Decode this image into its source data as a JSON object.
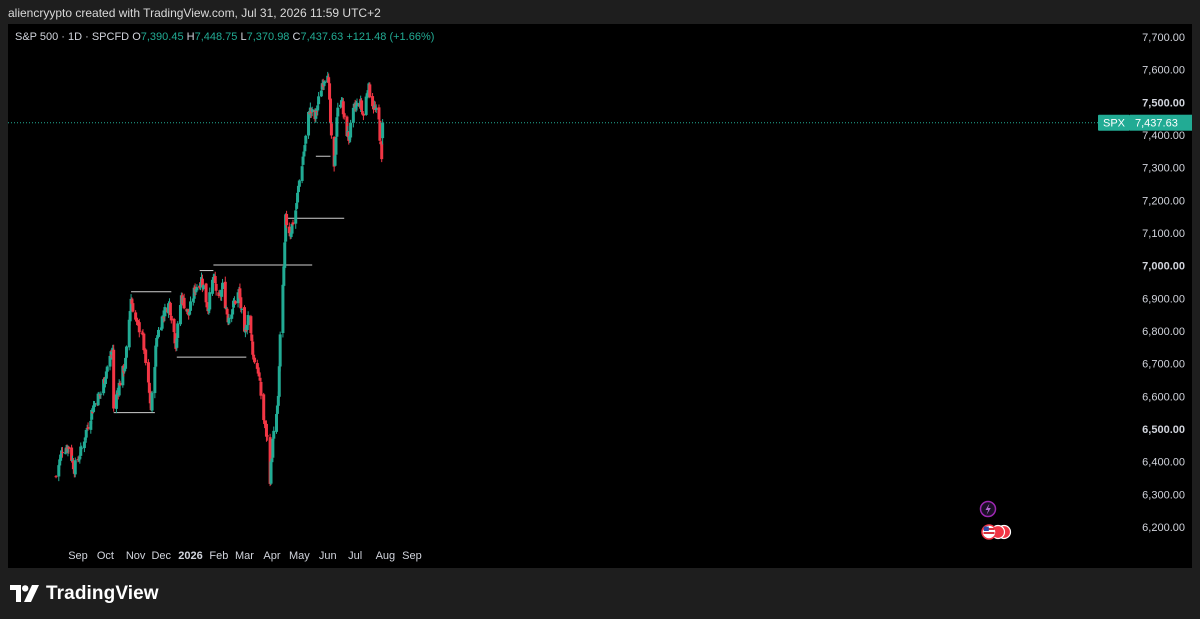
{
  "caption": "aliencryypto created with TradingView.com, Jul 31, 2026 11:59 UTC+2",
  "legend": {
    "symbol": "S&P 500 · 1D · SPCFD",
    "open_label": "O",
    "open": "7,390.45",
    "high_label": "H",
    "high": "7,448.75",
    "low_label": "L",
    "low": "7,370.98",
    "close_label": "C",
    "close": "7,437.63",
    "change": "+121.48 (+1.66%)"
  },
  "price_tag": {
    "symbol": "SPX",
    "value": "7,437.63"
  },
  "brand": {
    "name": "TradingView"
  },
  "colors": {
    "up": "#22ab94",
    "down": "#f23645",
    "background": "#000000",
    "frame": "#1e1e1e",
    "tag": "#22ab94",
    "level_lines": "#cfcfcf"
  },
  "chart_data": {
    "type": "candlestick",
    "symbol": "S&P 500",
    "interval": "1D",
    "ylim": [
      6130,
      7750
    ],
    "y_ticks": [
      {
        "value": 6200,
        "label": "6,200.00",
        "bold": false
      },
      {
        "value": 6300,
        "label": "6,300.00",
        "bold": false
      },
      {
        "value": 6400,
        "label": "6,400.00",
        "bold": false
      },
      {
        "value": 6500,
        "label": "6,500.00",
        "bold": true
      },
      {
        "value": 6600,
        "label": "6,600.00",
        "bold": false
      },
      {
        "value": 6700,
        "label": "6,700.00",
        "bold": false
      },
      {
        "value": 6800,
        "label": "6,800.00",
        "bold": false
      },
      {
        "value": 6900,
        "label": "6,900.00",
        "bold": false
      },
      {
        "value": 7000,
        "label": "7,000.00",
        "bold": true
      },
      {
        "value": 7100,
        "label": "7,100.00",
        "bold": false
      },
      {
        "value": 7200,
        "label": "7,200.00",
        "bold": false
      },
      {
        "value": 7300,
        "label": "7,300.00",
        "bold": false
      },
      {
        "value": 7400,
        "label": "7,400.00",
        "bold": false
      },
      {
        "value": 7500,
        "label": "7,500.00",
        "bold": true
      },
      {
        "value": 7600,
        "label": "7,600.00",
        "bold": false
      },
      {
        "value": 7700,
        "label": "7,700.00",
        "bold": false
      }
    ],
    "x_ticks": [
      {
        "date": "2025-09-01",
        "label": "Sep",
        "bold": false
      },
      {
        "date": "2025-10-01",
        "label": "Oct",
        "bold": false
      },
      {
        "date": "2025-11-03",
        "label": "Nov",
        "bold": false
      },
      {
        "date": "2025-12-01",
        "label": "Dec",
        "bold": false
      },
      {
        "date": "2026-01-02",
        "label": "2026",
        "bold": true
      },
      {
        "date": "2026-02-02",
        "label": "Feb",
        "bold": false
      },
      {
        "date": "2026-03-02",
        "label": "Mar",
        "bold": false
      },
      {
        "date": "2026-04-01",
        "label": "Apr",
        "bold": false
      },
      {
        "date": "2026-05-01",
        "label": "May",
        "bold": false
      },
      {
        "date": "2026-06-01",
        "label": "Jun",
        "bold": false
      },
      {
        "date": "2026-07-01",
        "label": "Jul",
        "bold": false
      },
      {
        "date": "2026-08-03",
        "label": "Aug",
        "bold": false
      },
      {
        "date": "2026-09-01",
        "label": "Sep",
        "bold": false
      }
    ],
    "current_price": 7437.63,
    "horizontal_levels": [
      {
        "from": "2025-10-10",
        "to": "2025-11-24",
        "price": 6550
      },
      {
        "from": "2025-10-29",
        "to": "2025-12-12",
        "price": 6920
      },
      {
        "from": "2025-12-18",
        "to": "2026-03-04",
        "price": 6720
      },
      {
        "from": "2026-01-12",
        "to": "2026-01-27",
        "price": 6985
      },
      {
        "from": "2026-01-27",
        "to": "2026-05-15",
        "price": 7002
      },
      {
        "from": "2026-04-15",
        "to": "2026-06-19",
        "price": 7145
      },
      {
        "from": "2026-05-19",
        "to": "2026-06-04",
        "price": 7335
      }
    ],
    "waypoints": [
      [
        "2025-08-08",
        6355
      ],
      [
        "2025-08-15",
        6440
      ],
      [
        "2025-08-22",
        6445
      ],
      [
        "2025-08-28",
        6380
      ],
      [
        "2025-09-04",
        6430
      ],
      [
        "2025-09-12",
        6515
      ],
      [
        "2025-09-19",
        6580
      ],
      [
        "2025-09-26",
        6610
      ],
      [
        "2025-10-03",
        6690
      ],
      [
        "2025-10-09",
        6745
      ],
      [
        "2025-10-10",
        6565
      ],
      [
        "2025-10-16",
        6635
      ],
      [
        "2025-10-23",
        6705
      ],
      [
        "2025-10-29",
        6900
      ],
      [
        "2025-11-04",
        6820
      ],
      [
        "2025-11-10",
        6800
      ],
      [
        "2025-11-14",
        6700
      ],
      [
        "2025-11-20",
        6560
      ],
      [
        "2025-11-26",
        6780
      ],
      [
        "2025-12-03",
        6850
      ],
      [
        "2025-12-10",
        6885
      ],
      [
        "2025-12-17",
        6760
      ],
      [
        "2025-12-23",
        6905
      ],
      [
        "2025-12-31",
        6850
      ],
      [
        "2026-01-07",
        6930
      ],
      [
        "2026-01-14",
        6960
      ],
      [
        "2026-01-21",
        6870
      ],
      [
        "2026-01-27",
        6965
      ],
      [
        "2026-02-02",
        6890
      ],
      [
        "2026-02-06",
        6935
      ],
      [
        "2026-02-12",
        6840
      ],
      [
        "2026-02-18",
        6880
      ],
      [
        "2026-02-24",
        6920
      ],
      [
        "2026-03-02",
        6780
      ],
      [
        "2026-03-06",
        6850
      ],
      [
        "2026-03-12",
        6720
      ],
      [
        "2026-03-17",
        6680
      ],
      [
        "2026-03-23",
        6530
      ],
      [
        "2026-03-27",
        6470
      ],
      [
        "2026-03-30",
        6350
      ],
      [
        "2026-04-02",
        6460
      ],
      [
        "2026-04-08",
        6585
      ],
      [
        "2026-04-10",
        6790
      ],
      [
        "2026-04-14",
        6980
      ],
      [
        "2026-04-16",
        7140
      ],
      [
        "2026-04-21",
        7100
      ],
      [
        "2026-04-27",
        7170
      ],
      [
        "2026-05-01",
        7260
      ],
      [
        "2026-05-07",
        7370
      ],
      [
        "2026-05-12",
        7480
      ],
      [
        "2026-05-18",
        7450
      ],
      [
        "2026-05-26",
        7560
      ],
      [
        "2026-06-01",
        7600
      ],
      [
        "2026-06-05",
        7380
      ],
      [
        "2026-06-08",
        7290
      ],
      [
        "2026-06-11",
        7460
      ],
      [
        "2026-06-16",
        7520
      ],
      [
        "2026-06-19",
        7440
      ],
      [
        "2026-06-24",
        7390
      ],
      [
        "2026-06-30",
        7480
      ],
      [
        "2026-07-06",
        7500
      ],
      [
        "2026-07-10",
        7460
      ],
      [
        "2026-07-15",
        7550
      ],
      [
        "2026-07-21",
        7490
      ],
      [
        "2026-07-27",
        7440
      ],
      [
        "2026-07-30",
        7316
      ],
      [
        "2026-07-31",
        7437.63
      ]
    ]
  }
}
